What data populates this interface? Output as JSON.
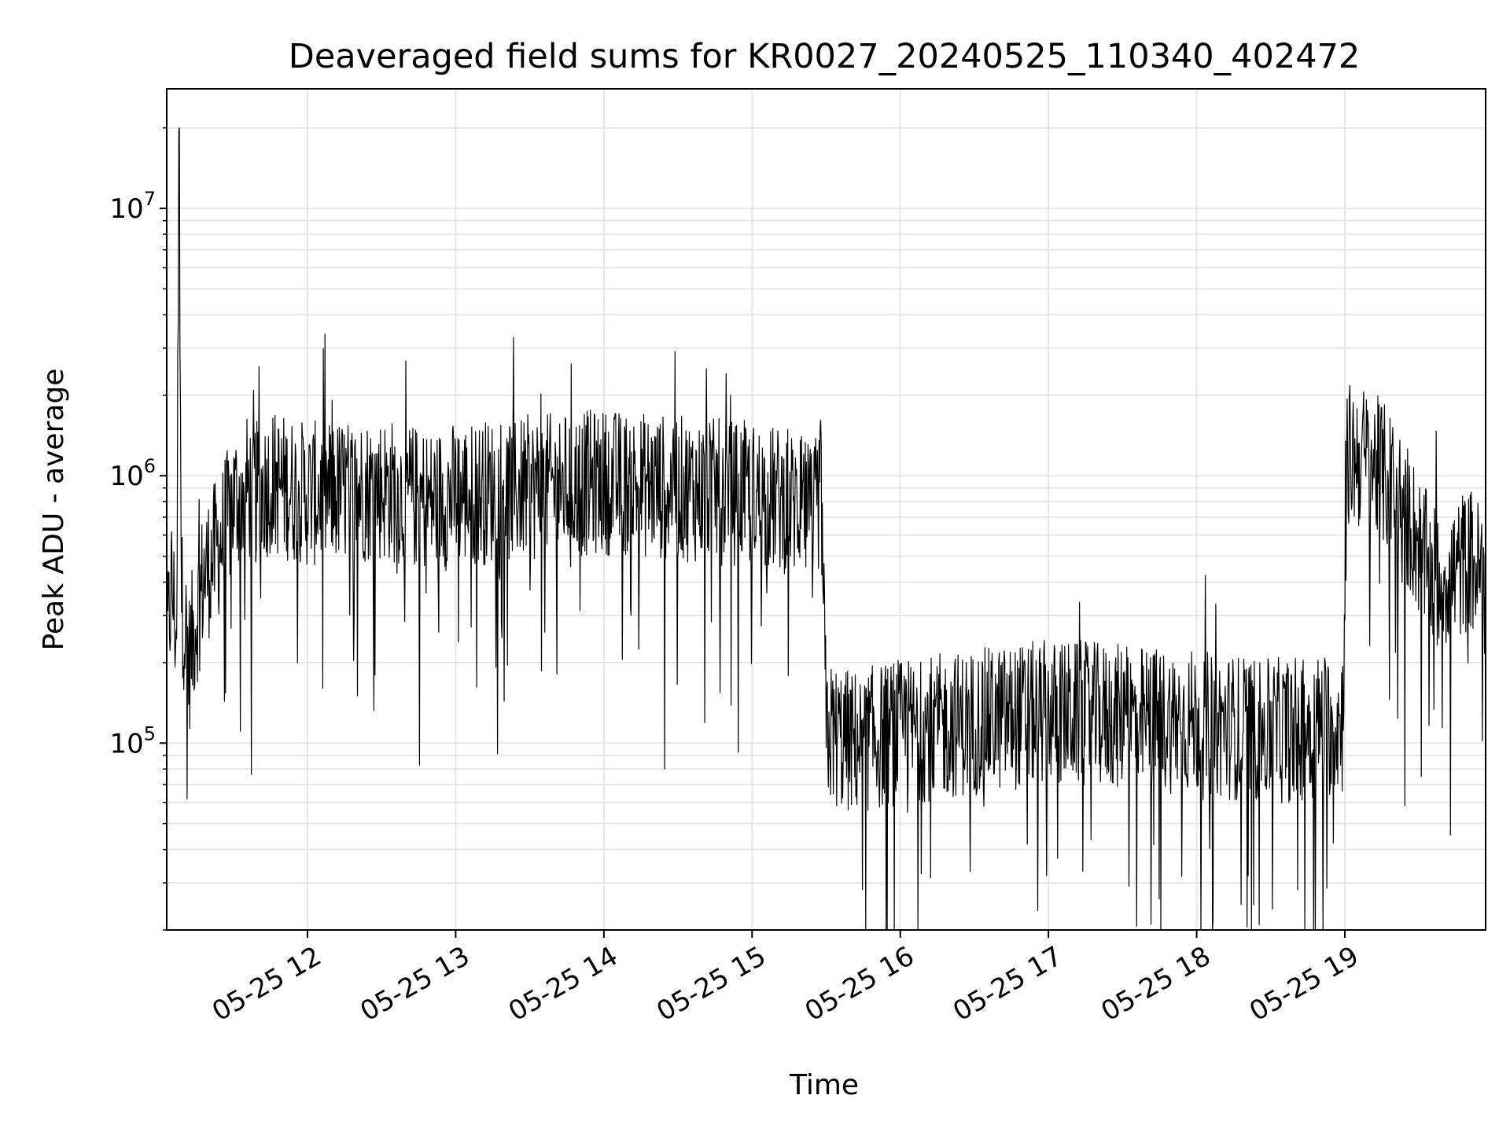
{
  "chart_data": {
    "type": "line",
    "title": "Deaveraged field sums for KR0027_20240525_110340_402472",
    "xlabel": "Time",
    "ylabel": "Peak ADU - average",
    "yscale": "log",
    "ylim": [
      20000,
      28000000
    ],
    "xlim": [
      "2024-05-25 11:03",
      "2024-05-25 19:57"
    ],
    "grid": true,
    "line_color": "#000000",
    "x_ticks": [
      {
        "time": "2024-05-25 12:00",
        "label": "05-25 12"
      },
      {
        "time": "2024-05-25 13:00",
        "label": "05-25 13"
      },
      {
        "time": "2024-05-25 14:00",
        "label": "05-25 14"
      },
      {
        "time": "2024-05-25 15:00",
        "label": "05-25 15"
      },
      {
        "time": "2024-05-25 16:00",
        "label": "05-25 16"
      },
      {
        "time": "2024-05-25 17:00",
        "label": "05-25 17"
      },
      {
        "time": "2024-05-25 18:00",
        "label": "05-25 18"
      },
      {
        "time": "2024-05-25 19:00",
        "label": "05-25 19"
      }
    ],
    "y_ticks": [
      {
        "value": 100000,
        "base": "10",
        "exp": "5"
      },
      {
        "value": 1000000,
        "base": "10",
        "exp": "6"
      },
      {
        "value": 10000000,
        "base": "10",
        "exp": "7"
      }
    ],
    "series": [
      {
        "points": [
          [
            "2024-05-25 11:03",
            220000
          ],
          [
            "2024-05-25 11:05",
            400000
          ],
          [
            "2024-05-25 11:07",
            250000
          ],
          [
            "2024-05-25 11:08",
            20000000
          ],
          [
            "2024-05-25 11:09",
            350000
          ],
          [
            "2024-05-25 11:12",
            200000
          ],
          [
            "2024-05-25 11:15",
            300000
          ],
          [
            "2024-05-25 11:18",
            420000
          ],
          [
            "2024-05-25 11:22",
            500000
          ],
          [
            "2024-05-25 11:26",
            600000
          ],
          [
            "2024-05-25 11:30",
            800000
          ],
          [
            "2024-05-25 11:35",
            900000
          ],
          [
            "2024-05-25 11:40",
            850000
          ],
          [
            "2024-05-25 11:45",
            950000
          ],
          [
            "2024-05-25 11:55",
            880000
          ],
          [
            "2024-05-25 12:00",
            850000
          ],
          [
            "2024-05-25 12:30",
            900000
          ],
          [
            "2024-05-25 12:50",
            800000
          ],
          [
            "2024-05-25 13:00",
            850000
          ],
          [
            "2024-05-25 13:30",
            900000
          ],
          [
            "2024-05-25 14:00",
            950000
          ],
          [
            "2024-05-25 14:30",
            900000
          ],
          [
            "2024-05-25 15:00",
            850000
          ],
          [
            "2024-05-25 15:15",
            800000
          ],
          [
            "2024-05-25 15:25",
            700000
          ],
          [
            "2024-05-25 15:28",
            900000
          ],
          [
            "2024-05-25 15:30",
            110000
          ],
          [
            "2024-05-25 15:40",
            100000
          ],
          [
            "2024-05-25 16:00",
            110000
          ],
          [
            "2024-05-25 16:30",
            120000
          ],
          [
            "2024-05-25 17:00",
            130000
          ],
          [
            "2024-05-25 17:30",
            125000
          ],
          [
            "2024-05-25 18:00",
            120000
          ],
          [
            "2024-05-25 18:30",
            110000
          ],
          [
            "2024-05-25 18:59",
            120000
          ],
          [
            "2024-05-25 19:01",
            1200000
          ],
          [
            "2024-05-25 19:10",
            1150000
          ],
          [
            "2024-05-25 19:20",
            900000
          ],
          [
            "2024-05-25 19:27",
            650000
          ],
          [
            "2024-05-25 19:35",
            420000
          ],
          [
            "2024-05-25 19:45",
            430000
          ],
          [
            "2024-05-25 19:50",
            500000
          ],
          [
            "2024-05-25 19:57",
            400000
          ]
        ]
      }
    ]
  }
}
